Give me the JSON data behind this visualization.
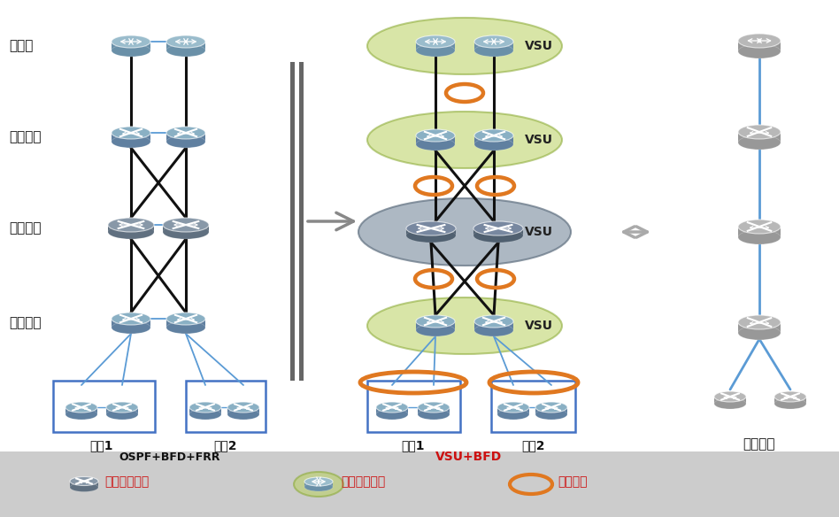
{
  "bg_color": "#ffffff",
  "legend_bg": "#cccccc",
  "left_labels": [
    "省下联",
    "地市上联",
    "地市核心",
    "地市下联"
  ],
  "blue_line_color": "#5b9bd5",
  "black_line_color": "#111111",
  "orange_color": "#e07820",
  "green_fill": "#a8c840",
  "dark_fill": "#7a8a98",
  "router_top_color": "#8ab4c8",
  "router_side_color": "#6890a8",
  "switch_top_color": "#7a8a98",
  "switch_side_color": "#5a6a78",
  "gray_top_color": "#b8b8b8",
  "gray_side_color": "#989898",
  "red_color": "#cc1111",
  "vsu_text_color": "#222222",
  "label_color": "#111111",
  "legend_items": [
    "交换机虚拟化",
    "路由器虚拟化",
    "链路聚合"
  ]
}
